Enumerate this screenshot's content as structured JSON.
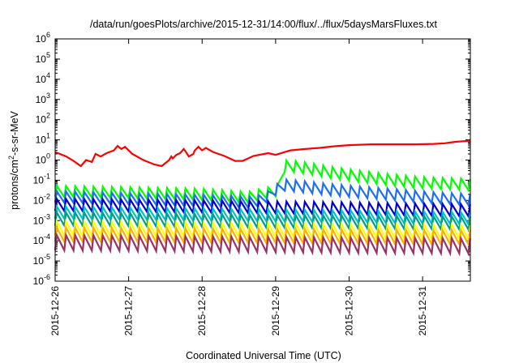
{
  "chart_data": {
    "type": "line",
    "title": "/data/run/goesPlots/archive/2015-12-31/14:00/flux/../flux/5daysMarsFluxes.txt",
    "xlabel": "Coordinated Universal Time (UTC)",
    "ylabel": {
      "base": "protons/cm",
      "sup": "2",
      "rest": "-s-sr-MeV"
    },
    "yscale": "log",
    "ylim_exp": [
      -6,
      6
    ],
    "y_ticks": [
      {
        "base": "10",
        "exp": "6"
      },
      {
        "base": "10",
        "exp": "5"
      },
      {
        "base": "10",
        "exp": "4"
      },
      {
        "base": "10",
        "exp": "3"
      },
      {
        "base": "10",
        "exp": "2"
      },
      {
        "base": "10",
        "exp": "1"
      },
      {
        "base": "10",
        "exp": "0"
      },
      {
        "base": "10",
        "exp": "-1"
      },
      {
        "base": "10",
        "exp": "-2"
      },
      {
        "base": "10",
        "exp": "-3"
      },
      {
        "base": "10",
        "exp": "-4"
      },
      {
        "base": "10",
        "exp": "-5"
      },
      {
        "base": "10",
        "exp": "-6"
      }
    ],
    "xlim_days": [
      0,
      5.65
    ],
    "x_ticks": [
      "2015-12-26",
      "2015-12-27",
      "2015-12-28",
      "2015-12-29",
      "2015-12-30",
      "2015-12-31"
    ],
    "grid": false,
    "legend": "none",
    "series": [
      {
        "color": "#ff0000",
        "points": [
          [
            0,
            2.5
          ],
          [
            0.15,
            1.5
          ],
          [
            0.25,
            0.9
          ],
          [
            0.35,
            0.5
          ],
          [
            0.42,
            1.0
          ],
          [
            0.5,
            0.8
          ],
          [
            0.55,
            2.0
          ],
          [
            0.62,
            1.5
          ],
          [
            0.7,
            2.2
          ],
          [
            0.8,
            3.0
          ],
          [
            0.85,
            5.0
          ],
          [
            0.9,
            3.5
          ],
          [
            0.95,
            4.5
          ],
          [
            1.05,
            2.0
          ],
          [
            1.2,
            1.0
          ],
          [
            1.35,
            0.6
          ],
          [
            1.45,
            0.5
          ],
          [
            1.52,
            0.8
          ],
          [
            1.55,
            1.0
          ],
          [
            1.58,
            1.5
          ],
          [
            1.6,
            1.2
          ],
          [
            1.65,
            1.8
          ],
          [
            1.7,
            2.2
          ],
          [
            1.75,
            3.5
          ],
          [
            1.78,
            2.5
          ],
          [
            1.82,
            1.5
          ],
          [
            1.88,
            2.0
          ],
          [
            1.9,
            3.0
          ],
          [
            1.95,
            4.5
          ],
          [
            2.0,
            3.0
          ],
          [
            2.05,
            4.0
          ],
          [
            2.15,
            2.5
          ],
          [
            2.3,
            1.6
          ],
          [
            2.45,
            0.9
          ],
          [
            2.55,
            0.9
          ],
          [
            2.7,
            1.6
          ],
          [
            2.9,
            2.2
          ],
          [
            3.0,
            1.8
          ],
          [
            3.2,
            3.0
          ],
          [
            3.4,
            3.5
          ],
          [
            3.6,
            4.0
          ],
          [
            3.8,
            4.8
          ],
          [
            4.0,
            5.5
          ],
          [
            4.3,
            6.0
          ],
          [
            4.6,
            6.0
          ],
          [
            4.9,
            6.0
          ],
          [
            5.15,
            6.3
          ],
          [
            5.3,
            6.8
          ],
          [
            5.45,
            8.0
          ],
          [
            5.65,
            9.0
          ]
        ],
        "sawtooth": 0.35
      },
      {
        "color": "#00ff00",
        "points": [
          [
            0,
            0.028
          ],
          [
            1.0,
            0.024
          ],
          [
            2.0,
            0.02
          ],
          [
            2.6,
            0.014
          ],
          [
            3.0,
            0.03
          ],
          [
            3.05,
            0.5
          ],
          [
            3.2,
            0.5
          ],
          [
            3.4,
            0.4
          ],
          [
            3.6,
            0.3
          ],
          [
            3.8,
            0.22
          ],
          [
            4.0,
            0.18
          ],
          [
            4.3,
            0.13
          ],
          [
            4.6,
            0.1
          ],
          [
            4.9,
            0.08
          ],
          [
            5.2,
            0.07
          ],
          [
            5.45,
            0.065
          ],
          [
            5.65,
            0.06
          ]
        ],
        "sawtooth": 0.55
      },
      {
        "color": "#1e6ff0",
        "points": [
          [
            0,
            0.015
          ],
          [
            1.0,
            0.012
          ],
          [
            2.0,
            0.01
          ],
          [
            2.7,
            0.008
          ],
          [
            2.95,
            0.02
          ],
          [
            3.05,
            0.06
          ],
          [
            3.3,
            0.05
          ],
          [
            3.6,
            0.038
          ],
          [
            4.0,
            0.028
          ],
          [
            4.4,
            0.022
          ],
          [
            4.8,
            0.017
          ],
          [
            5.2,
            0.013
          ],
          [
            5.65,
            0.011
          ]
        ],
        "sawtooth": 0.55
      },
      {
        "color": "#0000cc",
        "points": [
          [
            0,
            0.006
          ],
          [
            1.0,
            0.0055
          ],
          [
            2.0,
            0.005
          ],
          [
            3.0,
            0.0045
          ],
          [
            4.0,
            0.004
          ],
          [
            5.0,
            0.0035
          ],
          [
            5.65,
            0.0032
          ]
        ],
        "sawtooth": 0.6
      },
      {
        "color": "#00c4c4",
        "points": [
          [
            0,
            0.0025
          ],
          [
            1.0,
            0.0022
          ],
          [
            2.0,
            0.002
          ],
          [
            3.0,
            0.0018
          ],
          [
            4.0,
            0.0016
          ],
          [
            5.0,
            0.0014
          ],
          [
            5.65,
            0.0013
          ]
        ],
        "sawtooth": 0.6
      },
      {
        "color": "#009e8a",
        "points": [
          [
            0,
            0.0012
          ],
          [
            1.0,
            0.0011
          ],
          [
            2.0,
            0.001
          ],
          [
            3.0,
            0.0009
          ],
          [
            4.0,
            0.00085
          ],
          [
            5.0,
            0.0008
          ],
          [
            5.65,
            0.00075
          ]
        ],
        "sawtooth": 0.65
      },
      {
        "color": "#ffff00",
        "points": [
          [
            0,
            0.0004
          ],
          [
            1.0,
            0.00038
          ],
          [
            2.0,
            0.00035
          ],
          [
            3.0,
            0.00033
          ],
          [
            4.0,
            0.0003
          ],
          [
            5.0,
            0.00028
          ],
          [
            5.65,
            0.00027
          ]
        ],
        "sawtooth": 0.7
      },
      {
        "color": "#ffb000",
        "points": [
          [
            0,
            0.0002
          ],
          [
            1.0,
            0.00019
          ],
          [
            2.0,
            0.00018
          ],
          [
            3.0,
            0.00017
          ],
          [
            4.0,
            0.00016
          ],
          [
            5.0,
            0.00015
          ],
          [
            5.65,
            0.00015
          ]
        ],
        "sawtooth": 0.7
      },
      {
        "color": "#993366",
        "points": [
          [
            0,
            8e-05
          ],
          [
            1.0,
            7.5e-05
          ],
          [
            2.0,
            7e-05
          ],
          [
            3.0,
            6.5e-05
          ],
          [
            4.0,
            6e-05
          ],
          [
            5.0,
            5.8e-05
          ],
          [
            5.65,
            5.5e-05
          ]
        ],
        "sawtooth": 0.75
      }
    ]
  }
}
